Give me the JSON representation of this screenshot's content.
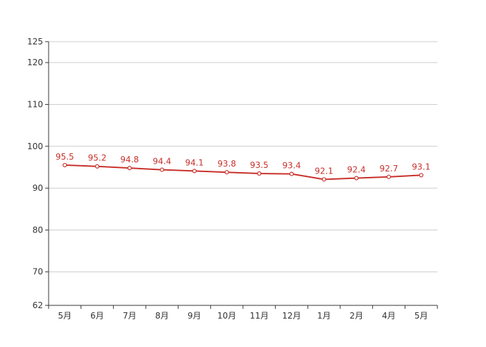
{
  "chart_data": {
    "type": "line",
    "categories": [
      "5月",
      "6月",
      "7月",
      "8月",
      "9月",
      "10月",
      "11月",
      "12月",
      "1月",
      "2月",
      "4月",
      "5月"
    ],
    "series": [
      {
        "values": [
          95.5,
          95.2,
          94.8,
          94.4,
          94.1,
          93.8,
          93.5,
          93.4,
          92.1,
          92.4,
          92.7,
          93.1
        ],
        "color": "#c8312b",
        "marker": "circle",
        "marker_fill": "#ffffff"
      }
    ],
    "y_ticks": [
      62,
      70,
      80,
      90,
      100,
      110,
      120,
      125
    ],
    "ylim": [
      62,
      125
    ],
    "grid": true,
    "data_labels": true,
    "legend": "none"
  }
}
